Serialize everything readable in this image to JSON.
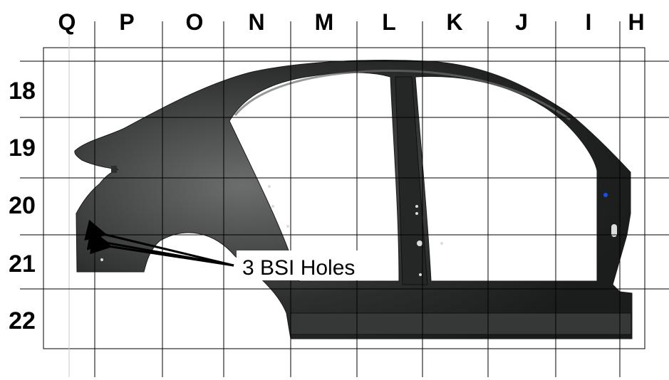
{
  "grid": {
    "columns": [
      "Q",
      "P",
      "O",
      "N",
      "M",
      "L",
      "K",
      "J",
      "I",
      "H"
    ],
    "rows": [
      "18",
      "19",
      "20",
      "21",
      "22"
    ]
  },
  "part": {
    "body_color": "#2c2f2d",
    "highlight_color": "#6b6e6c"
  },
  "callout": {
    "text": "3 BSI Holes"
  }
}
